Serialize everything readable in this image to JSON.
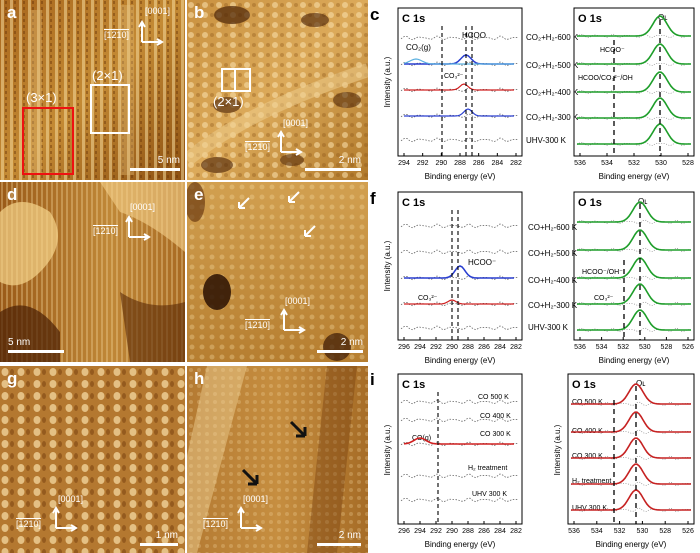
{
  "stm": {
    "a": {
      "label": "a",
      "dir1": "[0001]",
      "dir2": "[1̅2̅10]",
      "dir2_text": "[1210]",
      "cell1": "(2×1)",
      "cell2": "(3×1)",
      "scale": "5 nm"
    },
    "b": {
      "label": "b",
      "dir1": "[0001]",
      "dir2_text": "[1210]",
      "cell": "(2×1)",
      "scale": "2 nm"
    },
    "d": {
      "label": "d",
      "dir1": "[0001]",
      "dir2_text": "[1210]",
      "scale": "5 nm"
    },
    "e": {
      "label": "e",
      "dir1": "[0001]",
      "dir2_text": "[1210]",
      "scale": "2 nm"
    },
    "g": {
      "label": "g",
      "dir1": "[0001]",
      "dir2_text": "[1210]",
      "scale": "1 nm"
    },
    "h": {
      "label": "h",
      "dir1": "[0001]",
      "dir2_text": "[1210]",
      "scale": "2 nm"
    }
  },
  "xps": {
    "ylabel": "Intensity (a.u.)",
    "xlabel": "Binding energy (eV)",
    "c": {
      "label": "c",
      "c1s": {
        "title": "C 1s",
        "ticks": [
          "294",
          "292",
          "290",
          "288",
          "286",
          "284",
          "282"
        ],
        "tags": {
          "co2g": "CO₂(g)",
          "hcoo": "HCOO",
          "co3": "CO₃²⁻"
        }
      },
      "o1s": {
        "title": "O 1s",
        "ticks": [
          "536",
          "534",
          "532",
          "530",
          "528"
        ],
        "tags": {
          "ol": "Oʟ",
          "hcoo": "HCOO⁻",
          "mix": "HCOO/CO₃²⁻/OH"
        }
      },
      "conditions": [
        "CO₂+H₂-600 K",
        "CO₂+H₂-500 K",
        "CO₂+H₂-400 K",
        "CO₂+H₂-300 K",
        "UHV-300 K"
      ]
    },
    "f": {
      "label": "f",
      "c1s": {
        "title": "C 1s",
        "ticks": [
          "296",
          "294",
          "292",
          "290",
          "288",
          "286",
          "284",
          "282"
        ],
        "tags": {
          "hcoo": "HCOO⁻",
          "co3": "CO₃²⁻"
        }
      },
      "o1s": {
        "title": "O 1s",
        "ticks": [
          "536",
          "534",
          "532",
          "530",
          "528",
          "526"
        ],
        "tags": {
          "ol": "Oʟ",
          "hcoo": "HCOO⁻/OH⁻",
          "co3": "CO₃²⁻"
        }
      },
      "conditions": [
        "CO+H₂-600 K",
        "CO+H₂-500 K",
        "CO+H₂-400 K",
        "CO+H₂-300 K",
        "UHV-300 K"
      ]
    },
    "i": {
      "label": "i",
      "c1s": {
        "title": "C 1s",
        "ticks": [
          "296",
          "294",
          "292",
          "290",
          "288",
          "286",
          "284",
          "282"
        ],
        "tags": {
          "cog": "CO(g)"
        },
        "conditions": [
          "CO 500 K",
          "CO 400 K",
          "CO 300 K",
          "H₂ treatment",
          "UHV 300 K"
        ]
      },
      "o1s": {
        "title": "O 1s",
        "ticks": [
          "536",
          "534",
          "532",
          "530",
          "528",
          "526"
        ],
        "tags": {
          "ol": "Oʟ"
        },
        "conditions": [
          "CO 500 K",
          "CO 400 K",
          "CO 300 K",
          "H₂ treatment",
          "UHV 300 K"
        ]
      }
    }
  }
}
